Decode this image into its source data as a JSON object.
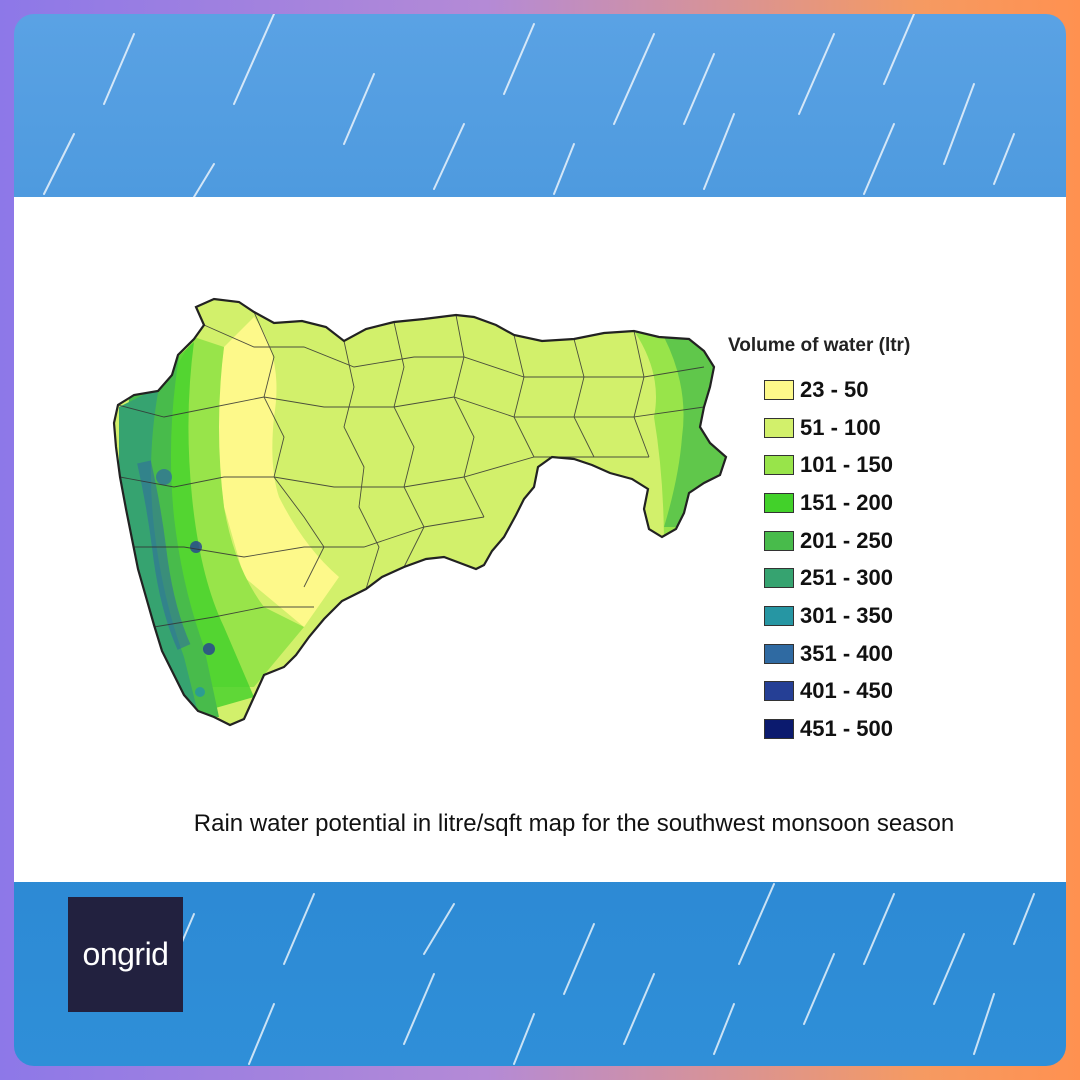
{
  "legend": {
    "title": "Volume of water (ltr)",
    "items": [
      {
        "label": "23 - 50",
        "color": "#fdf98a"
      },
      {
        "label": "51 - 100",
        "color": "#d2f06b"
      },
      {
        "label": "101 - 150",
        "color": "#98e44a"
      },
      {
        "label": "151 - 200",
        "color": "#42d12a"
      },
      {
        "label": "201 - 250",
        "color": "#48bb4b"
      },
      {
        "label": "251 - 300",
        "color": "#36a370"
      },
      {
        "label": "301 - 350",
        "color": "#2696a3"
      },
      {
        "label": "351 - 400",
        "color": "#2f6aa2"
      },
      {
        "label": "401 - 450",
        "color": "#253f95"
      },
      {
        "label": "451 - 500",
        "color": "#0b1a6e"
      }
    ]
  },
  "caption": "Rain water potential in litre/sqft map for the southwest monsoon season",
  "logo": {
    "text": "ongrid"
  },
  "colors": {
    "frame_left": "#8d78e8",
    "frame_right": "#ff9150",
    "sky": "#3b8ed6",
    "logo_bg": "#22213f"
  }
}
